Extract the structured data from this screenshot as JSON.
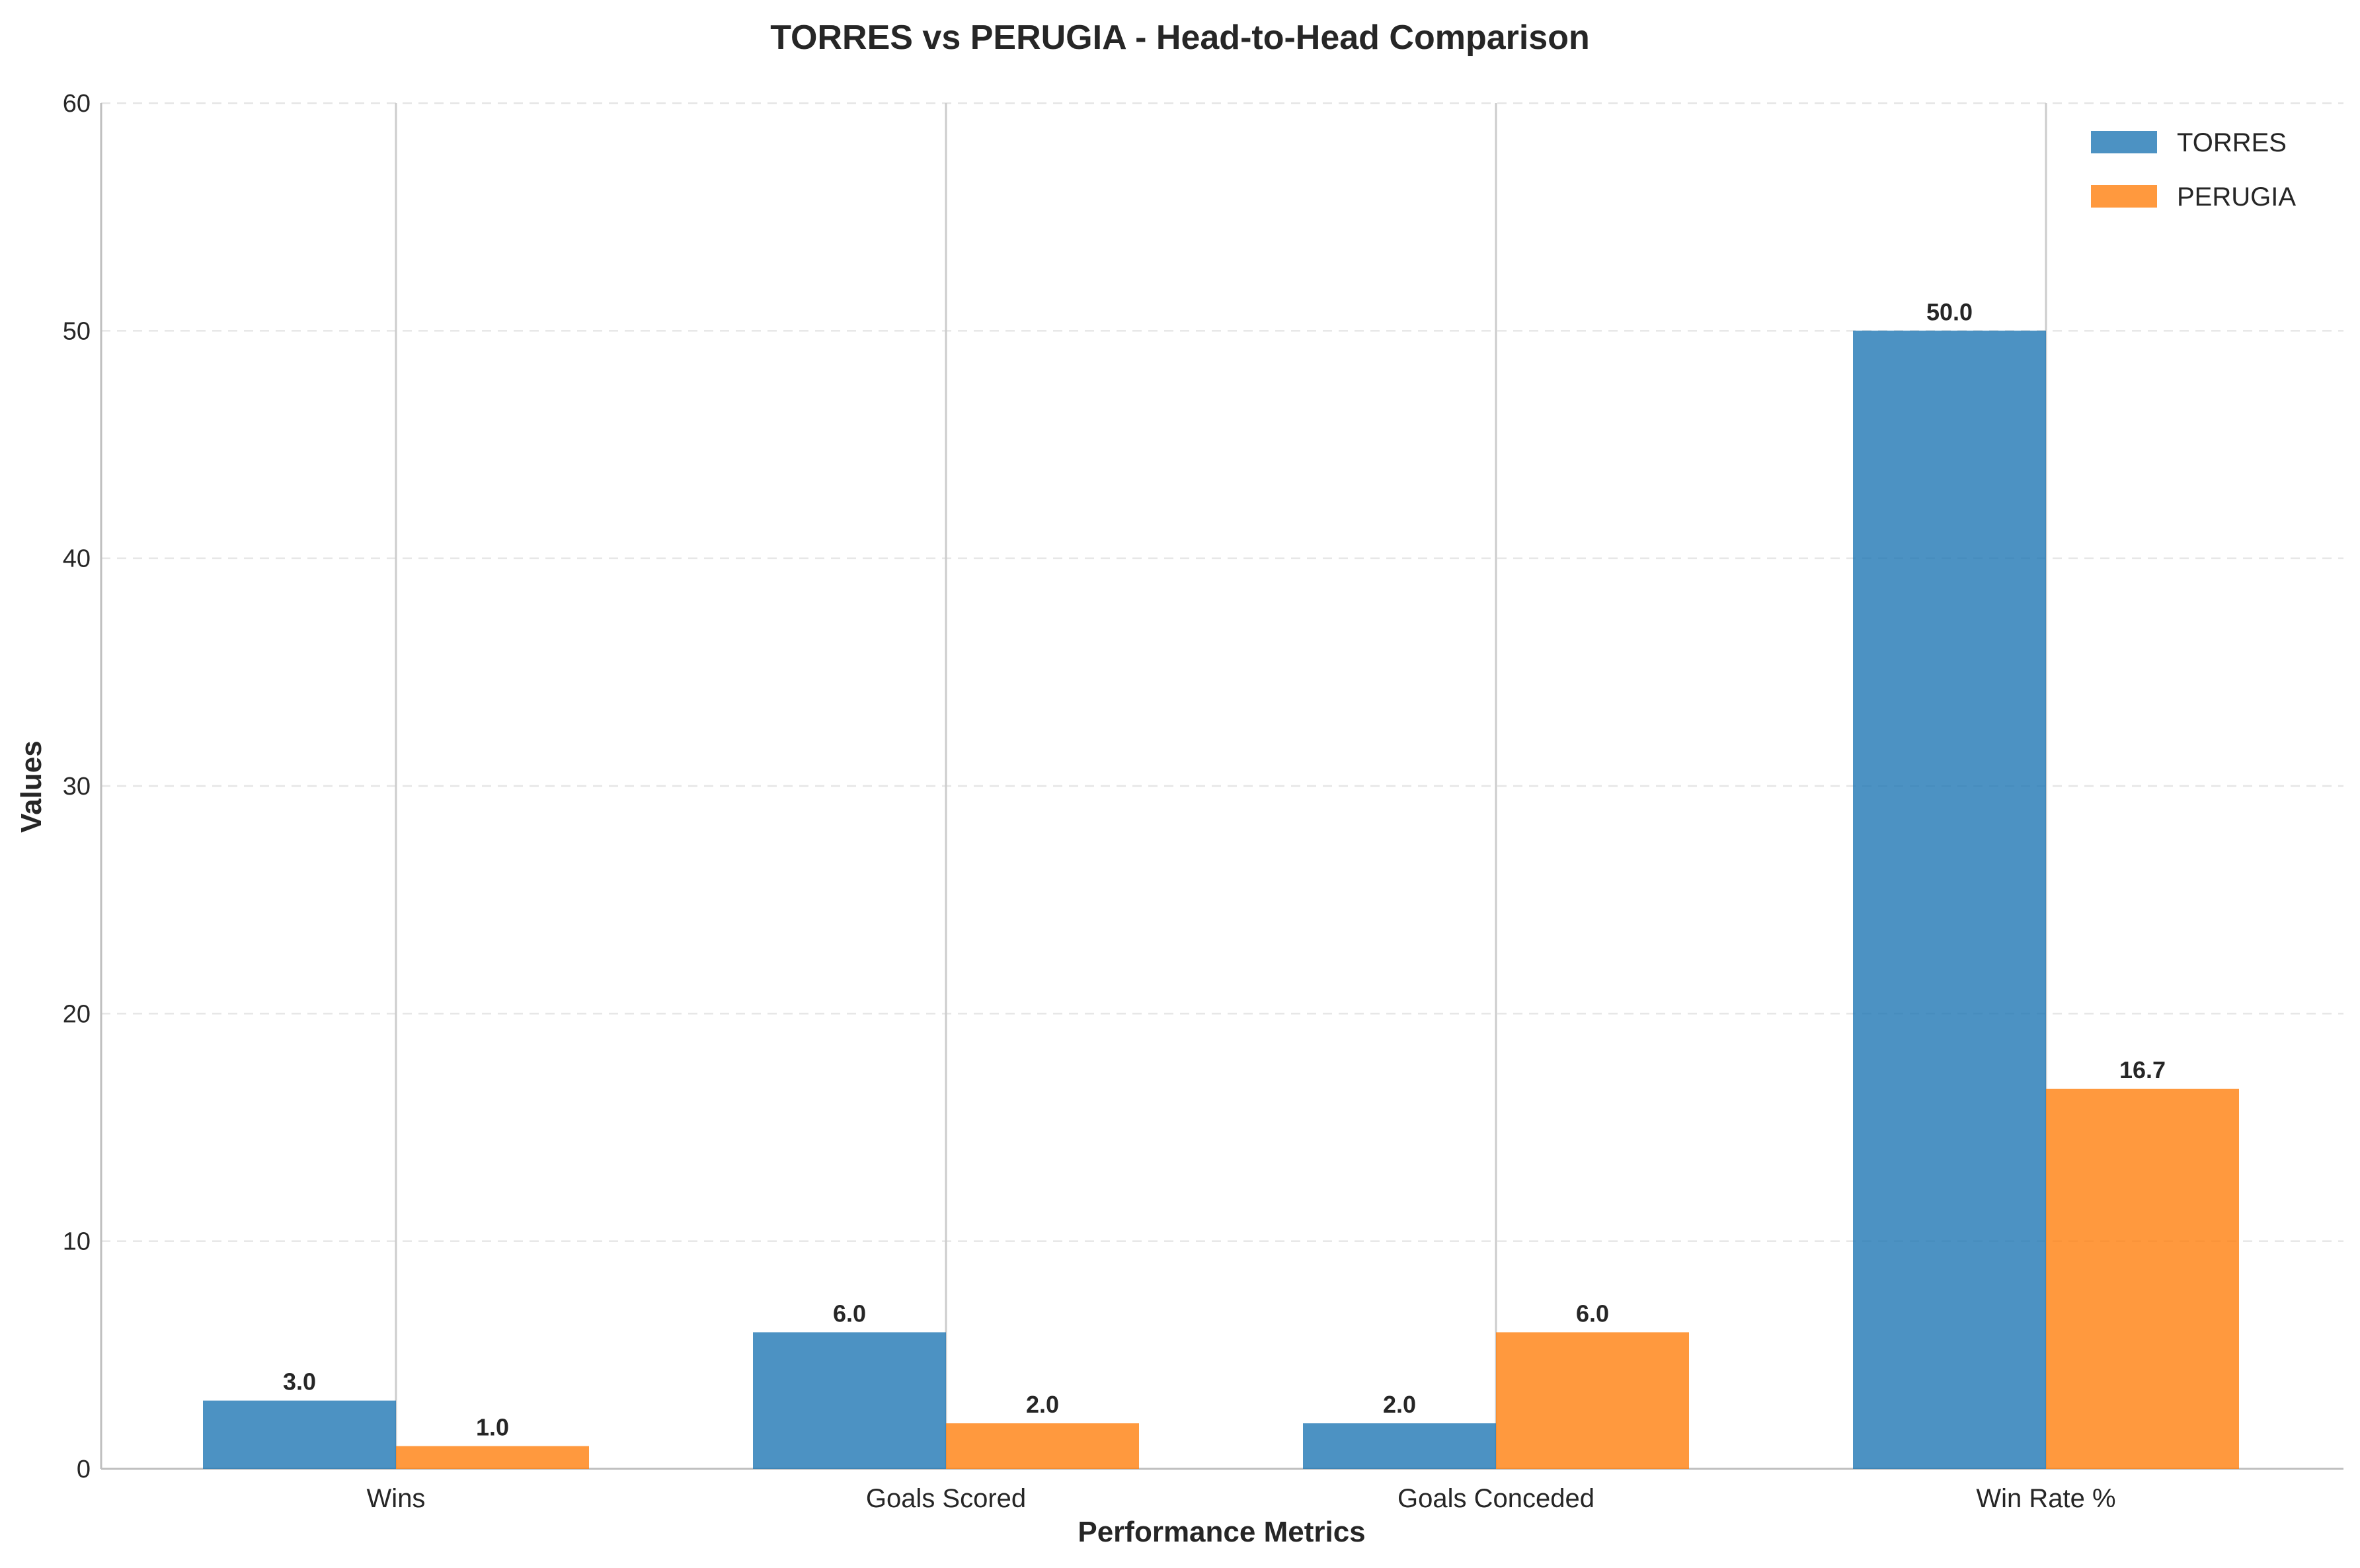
{
  "chart_data": {
    "type": "bar",
    "title": "TORRES vs PERUGIA - Head-to-Head Comparison",
    "xlabel": "Performance Metrics",
    "ylabel": "Values",
    "categories": [
      "Wins",
      "Goals Scored",
      "Goals Conceded",
      "Win Rate %"
    ],
    "series": [
      {
        "name": "TORRES",
        "values": [
          3.0,
          6.0,
          2.0,
          50.0
        ],
        "labels": [
          "3.0",
          "6.0",
          "2.0",
          "50.0"
        ],
        "color": "#1f77b4"
      },
      {
        "name": "PERUGIA",
        "values": [
          1.0,
          2.0,
          6.0,
          16.7
        ],
        "labels": [
          "1.0",
          "2.0",
          "6.0",
          "16.7"
        ],
        "color": "#ff7f0e"
      }
    ],
    "ylim": [
      0,
      60
    ],
    "yticks": [
      "0",
      "10",
      "20",
      "30",
      "40",
      "50",
      "60"
    ],
    "grid": "horizontal dashed, vertical solid at categories",
    "legend": "top-right"
  }
}
